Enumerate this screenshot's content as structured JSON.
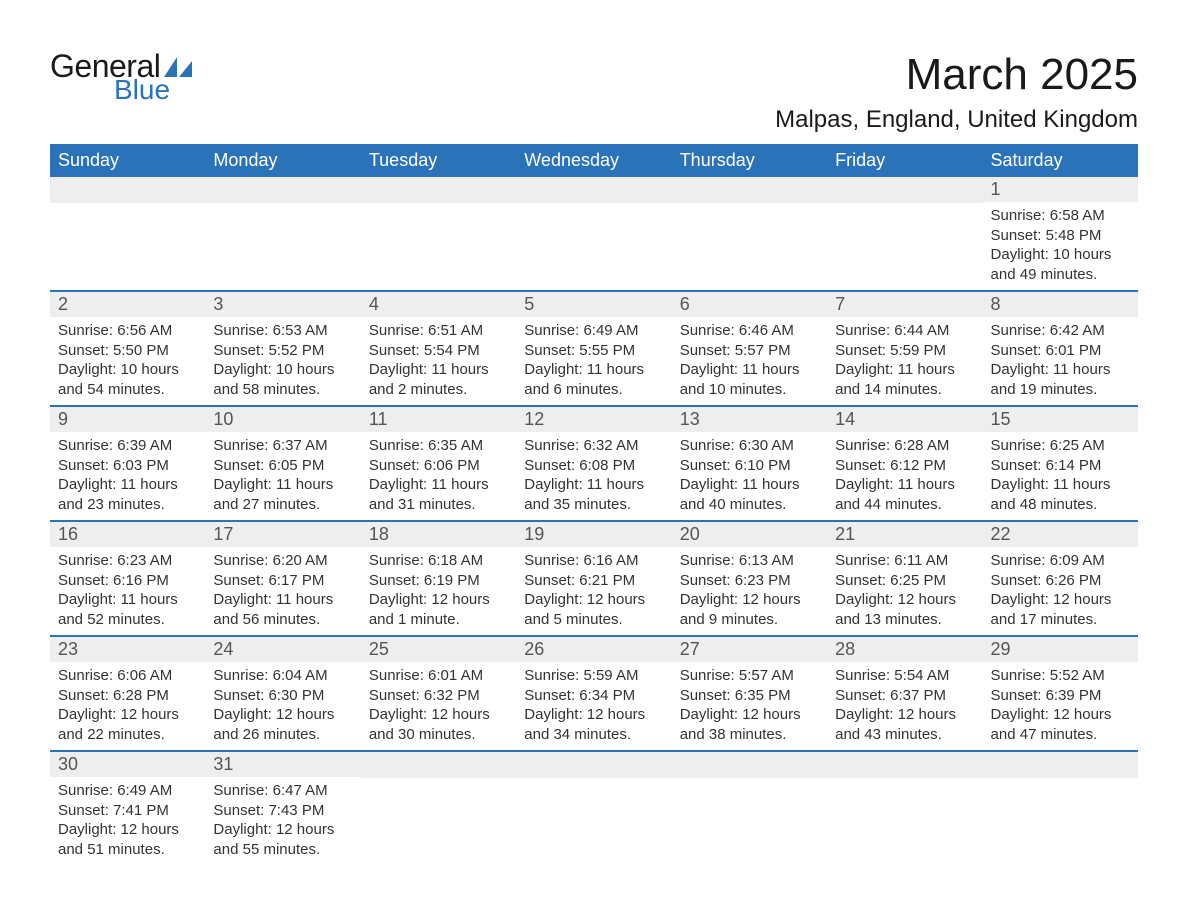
{
  "logo": {
    "text_general": "General",
    "text_blue": "Blue",
    "icon_color": "#2a73b8"
  },
  "title": "March 2025",
  "location": "Malpas, England, United Kingdom",
  "colors": {
    "header_bg": "#2a73b8",
    "header_text": "#ffffff",
    "daynum_bg": "#eeeeee",
    "border": "#2a73b8",
    "text": "#333333"
  },
  "day_headers": [
    "Sunday",
    "Monday",
    "Tuesday",
    "Wednesday",
    "Thursday",
    "Friday",
    "Saturday"
  ],
  "weeks": [
    [
      null,
      null,
      null,
      null,
      null,
      null,
      {
        "n": "1",
        "sunrise": "6:58 AM",
        "sunset": "5:48 PM",
        "daylight": "10 hours and 49 minutes."
      }
    ],
    [
      {
        "n": "2",
        "sunrise": "6:56 AM",
        "sunset": "5:50 PM",
        "daylight": "10 hours and 54 minutes."
      },
      {
        "n": "3",
        "sunrise": "6:53 AM",
        "sunset": "5:52 PM",
        "daylight": "10 hours and 58 minutes."
      },
      {
        "n": "4",
        "sunrise": "6:51 AM",
        "sunset": "5:54 PM",
        "daylight": "11 hours and 2 minutes."
      },
      {
        "n": "5",
        "sunrise": "6:49 AM",
        "sunset": "5:55 PM",
        "daylight": "11 hours and 6 minutes."
      },
      {
        "n": "6",
        "sunrise": "6:46 AM",
        "sunset": "5:57 PM",
        "daylight": "11 hours and 10 minutes."
      },
      {
        "n": "7",
        "sunrise": "6:44 AM",
        "sunset": "5:59 PM",
        "daylight": "11 hours and 14 minutes."
      },
      {
        "n": "8",
        "sunrise": "6:42 AM",
        "sunset": "6:01 PM",
        "daylight": "11 hours and 19 minutes."
      }
    ],
    [
      {
        "n": "9",
        "sunrise": "6:39 AM",
        "sunset": "6:03 PM",
        "daylight": "11 hours and 23 minutes."
      },
      {
        "n": "10",
        "sunrise": "6:37 AM",
        "sunset": "6:05 PM",
        "daylight": "11 hours and 27 minutes."
      },
      {
        "n": "11",
        "sunrise": "6:35 AM",
        "sunset": "6:06 PM",
        "daylight": "11 hours and 31 minutes."
      },
      {
        "n": "12",
        "sunrise": "6:32 AM",
        "sunset": "6:08 PM",
        "daylight": "11 hours and 35 minutes."
      },
      {
        "n": "13",
        "sunrise": "6:30 AM",
        "sunset": "6:10 PM",
        "daylight": "11 hours and 40 minutes."
      },
      {
        "n": "14",
        "sunrise": "6:28 AM",
        "sunset": "6:12 PM",
        "daylight": "11 hours and 44 minutes."
      },
      {
        "n": "15",
        "sunrise": "6:25 AM",
        "sunset": "6:14 PM",
        "daylight": "11 hours and 48 minutes."
      }
    ],
    [
      {
        "n": "16",
        "sunrise": "6:23 AM",
        "sunset": "6:16 PM",
        "daylight": "11 hours and 52 minutes."
      },
      {
        "n": "17",
        "sunrise": "6:20 AM",
        "sunset": "6:17 PM",
        "daylight": "11 hours and 56 minutes."
      },
      {
        "n": "18",
        "sunrise": "6:18 AM",
        "sunset": "6:19 PM",
        "daylight": "12 hours and 1 minute."
      },
      {
        "n": "19",
        "sunrise": "6:16 AM",
        "sunset": "6:21 PM",
        "daylight": "12 hours and 5 minutes."
      },
      {
        "n": "20",
        "sunrise": "6:13 AM",
        "sunset": "6:23 PM",
        "daylight": "12 hours and 9 minutes."
      },
      {
        "n": "21",
        "sunrise": "6:11 AM",
        "sunset": "6:25 PM",
        "daylight": "12 hours and 13 minutes."
      },
      {
        "n": "22",
        "sunrise": "6:09 AM",
        "sunset": "6:26 PM",
        "daylight": "12 hours and 17 minutes."
      }
    ],
    [
      {
        "n": "23",
        "sunrise": "6:06 AM",
        "sunset": "6:28 PM",
        "daylight": "12 hours and 22 minutes."
      },
      {
        "n": "24",
        "sunrise": "6:04 AM",
        "sunset": "6:30 PM",
        "daylight": "12 hours and 26 minutes."
      },
      {
        "n": "25",
        "sunrise": "6:01 AM",
        "sunset": "6:32 PM",
        "daylight": "12 hours and 30 minutes."
      },
      {
        "n": "26",
        "sunrise": "5:59 AM",
        "sunset": "6:34 PM",
        "daylight": "12 hours and 34 minutes."
      },
      {
        "n": "27",
        "sunrise": "5:57 AM",
        "sunset": "6:35 PM",
        "daylight": "12 hours and 38 minutes."
      },
      {
        "n": "28",
        "sunrise": "5:54 AM",
        "sunset": "6:37 PM",
        "daylight": "12 hours and 43 minutes."
      },
      {
        "n": "29",
        "sunrise": "5:52 AM",
        "sunset": "6:39 PM",
        "daylight": "12 hours and 47 minutes."
      }
    ],
    [
      {
        "n": "30",
        "sunrise": "6:49 AM",
        "sunset": "7:41 PM",
        "daylight": "12 hours and 51 minutes."
      },
      {
        "n": "31",
        "sunrise": "6:47 AM",
        "sunset": "7:43 PM",
        "daylight": "12 hours and 55 minutes."
      },
      null,
      null,
      null,
      null,
      null
    ]
  ],
  "labels": {
    "sunrise": "Sunrise:",
    "sunset": "Sunset:",
    "daylight": "Daylight:"
  }
}
